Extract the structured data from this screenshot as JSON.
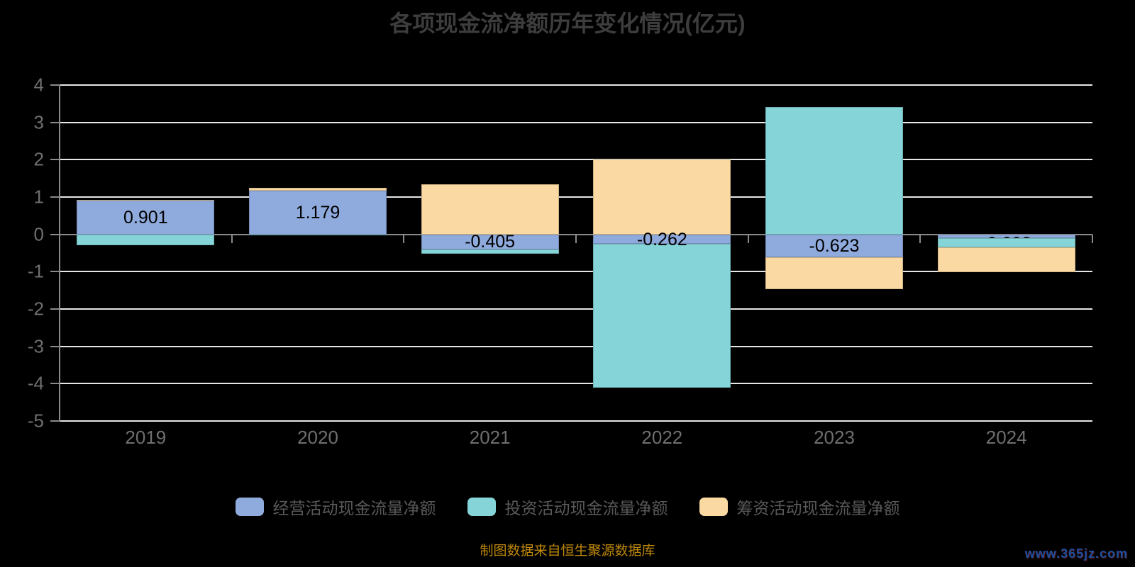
{
  "title": "各项现金流净额历年变化情况(亿元)",
  "source_note": "制图数据来自恒生聚源数据库",
  "watermark": "www.365jz.com",
  "colors": {
    "background": "#000000",
    "title": "#3d3d3d",
    "grid": "#e6e6e6",
    "axis": "#8a8a8a",
    "tick_label": "#6f6f6f",
    "legend_label": "#595959",
    "bar_label": "#000000",
    "source": "#c08a0a",
    "watermark_color": "#1d4f9e",
    "operating": "#8faadc",
    "investing": "#85d5d8",
    "financing": "#fbd9a2"
  },
  "chart_data": {
    "type": "bar",
    "stacked": true,
    "title": "各项现金流净额历年变化情况(亿元)",
    "categories": [
      "2019",
      "2020",
      "2021",
      "2022",
      "2023",
      "2024"
    ],
    "series": [
      {
        "name": "经营活动现金流量净额",
        "color_key": "operating",
        "values": [
          0.901,
          1.179,
          -0.405,
          -0.262,
          -0.623,
          -0.098
        ],
        "labeled": true,
        "labels": [
          "0.901",
          "1.179",
          "-0.405",
          "-0.262",
          "-0.623",
          "-0.098"
        ]
      },
      {
        "name": "投资活动现金流量净额",
        "color_key": "investing",
        "values": [
          -0.3,
          -0.03,
          -0.12,
          -3.85,
          3.42,
          -0.25
        ],
        "labeled": false
      },
      {
        "name": "筹资活动现金流量净额",
        "color_key": "financing",
        "values": [
          0.03,
          0.07,
          1.35,
          2.0,
          -0.85,
          -0.66
        ],
        "labeled": false
      }
    ],
    "ylim": [
      -5,
      4
    ],
    "y_ticks": [
      4,
      3,
      2,
      1,
      0,
      -1,
      -2,
      -3,
      -4,
      -5
    ],
    "xlabel": "",
    "ylabel": "",
    "grid": true,
    "legend_position": "bottom"
  }
}
